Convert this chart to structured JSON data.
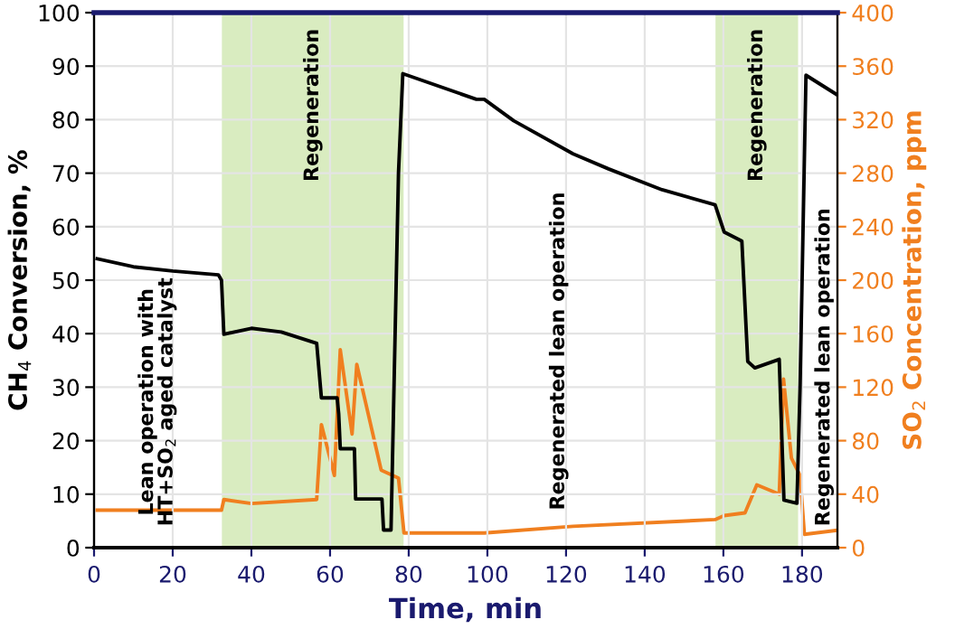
{
  "chart_data": {
    "type": "line",
    "xlabel": "Time, min",
    "ylabel": "CH$_{4}$ Conversion, %",
    "y2label": "SO$_{2}$ Concentration, ppm",
    "xlim": [
      0,
      189
    ],
    "xticks": [
      0,
      20,
      40,
      60,
      80,
      100,
      120,
      140,
      160,
      180
    ],
    "ylim": [
      0,
      100
    ],
    "yticks": [
      0,
      10,
      20,
      30,
      40,
      50,
      60,
      70,
      80,
      90,
      100
    ],
    "y2lim": [
      0,
      400
    ],
    "y2ticks": [
      0,
      40,
      80,
      120,
      160,
      200,
      240,
      280,
      320,
      360,
      400
    ],
    "grid": true,
    "legend": false,
    "series": [
      {
        "color": "#000000",
        "x": [
          0.8,
          10,
          20,
          31.6,
          32.4,
          33,
          40,
          47.6,
          56.6,
          57.8,
          61.8,
          62.2,
          62.6,
          66.2,
          66.5,
          73.2,
          73.6,
          75.5,
          77.4,
          78.5,
          97.2,
          99.2,
          106.7,
          121.8,
          130.8,
          144.4,
          157.9,
          160.2,
          164.7,
          166.2,
          168,
          174.2,
          175.4,
          178.7,
          179.5,
          181,
          189
        ],
        "values": [
          54,
          52.5,
          51.7,
          51,
          50,
          39.9,
          41,
          40.3,
          38.2,
          28,
          28,
          25,
          18.5,
          18.5,
          9.1,
          9.1,
          3.3,
          3.3,
          70,
          88.6,
          83.8,
          83.8,
          79.8,
          73.6,
          70.8,
          66.9,
          64.1,
          59,
          57.3,
          34.8,
          33.6,
          35.2,
          8.9,
          8.3,
          30,
          88.3,
          84.6
        ]
      },
      {
        "color": "#f07f1f",
        "axis": "y2",
        "x": [
          0.8,
          32.4,
          33,
          40,
          56.6,
          57.8,
          61.1,
          62.6,
          65.6,
          66.8,
          73,
          77.4,
          78.8,
          99.2,
          121.8,
          157.9,
          160.2,
          165.5,
          168.5,
          174.2,
          175.3,
          177.3,
          179.5,
          180.6,
          189
        ],
        "values": [
          28,
          28,
          36,
          33,
          36,
          92,
          54,
          148,
          85,
          137,
          58,
          52,
          11,
          11,
          16,
          21,
          24,
          26,
          47,
          40,
          126,
          67,
          54,
          10,
          13
        ]
      }
    ],
    "bands": [
      {
        "axis": "x",
        "from": 32.5,
        "to": 78.7,
        "label": "Regeneration",
        "color": "#d9ecc0"
      },
      {
        "axis": "x",
        "from": 158,
        "to": 179,
        "label": "Regeneration",
        "color": "#d9ecc0"
      }
    ],
    "annotations": [
      "Lean operation with\nHT+SO$_{2}$ aged catalyst",
      "Regenerated lean operation",
      "Regenerated lean operation"
    ]
  }
}
